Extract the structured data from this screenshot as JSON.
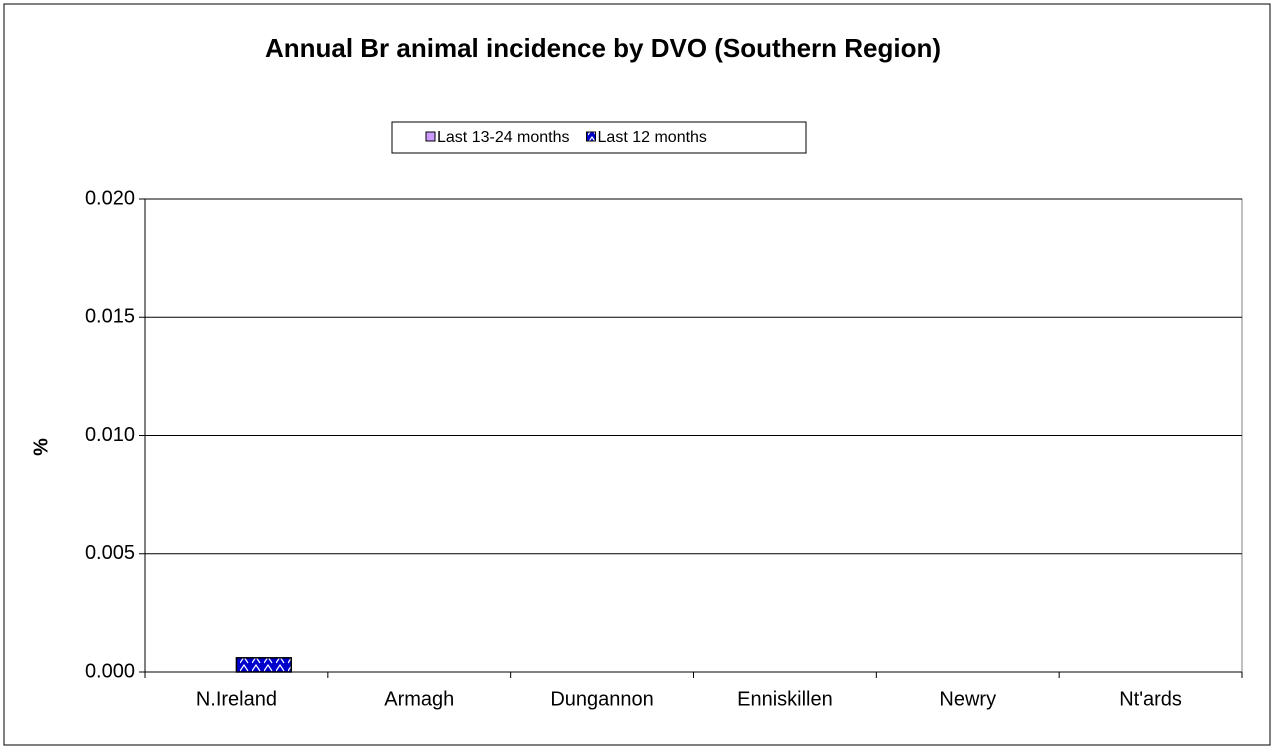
{
  "chart_data": {
    "type": "bar",
    "title": "Annual Br animal incidence by DVO (Southern Region)",
    "y_label": "%",
    "categories": [
      "N.Ireland",
      "Armagh",
      "Dungannon",
      "Enniskillen",
      "Newry",
      "Nt'ards"
    ],
    "series": [
      {
        "name": "Last 13-24 months",
        "color": "#cc99ff",
        "values": [
          0,
          0,
          0,
          0,
          0,
          0
        ]
      },
      {
        "name": "Last 12 months",
        "color": "#0000cc",
        "values": [
          0.0006,
          0,
          0,
          0,
          0,
          0
        ]
      }
    ],
    "ylim": [
      0,
      0.02
    ],
    "yticks": [
      {
        "value": 0,
        "label": "0.000"
      },
      {
        "value": 0.005,
        "label": "0.005"
      },
      {
        "value": 0.01,
        "label": "0.010"
      },
      {
        "value": 0.015,
        "label": "0.015"
      },
      {
        "value": 0.02,
        "label": "0.020"
      }
    ],
    "grid": true,
    "legend": "top"
  }
}
